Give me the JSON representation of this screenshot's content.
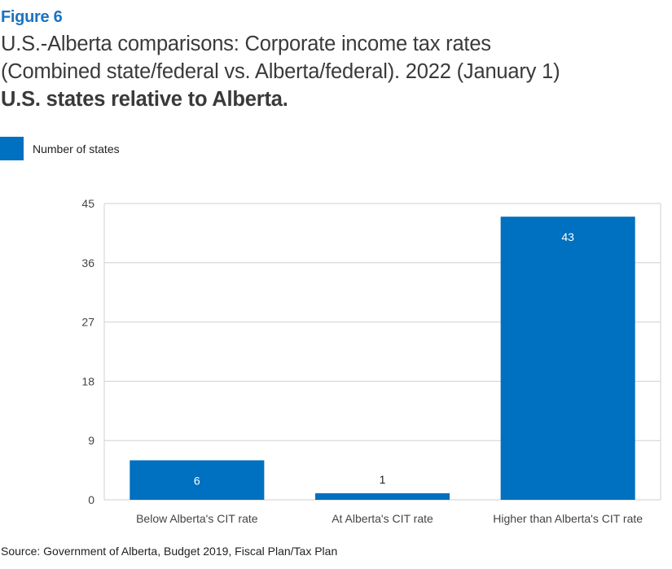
{
  "figure_label": "Figure 6",
  "title_line1": "U.S.-Alberta comparisons: Corporate income tax rates",
  "title_line2": "(Combined state/federal vs. Alberta/federal). 2022 (January 1)",
  "title_line3": "U.S. states relative to Alberta.",
  "source": "Source: Government of Alberta, Budget 2019, Fiscal Plan/Tax Plan",
  "colors": {
    "bar": "#0070c0",
    "accent": "#1a73c2",
    "grid": "#d0d0d0"
  },
  "chart_data": {
    "type": "bar",
    "categories": [
      "Below Alberta's CIT rate",
      "At Alberta's CIT rate",
      "Higher than Alberta's CIT rate"
    ],
    "series": [
      {
        "name": "Number of states",
        "values": [
          6,
          1,
          43
        ]
      }
    ],
    "data_labels": [
      "6",
      "1",
      "43"
    ],
    "yticks": [
      "0",
      "9",
      "18",
      "27",
      "36",
      "45"
    ],
    "ylim": [
      0,
      45
    ],
    "grid": true,
    "legend_position": "top-left"
  }
}
